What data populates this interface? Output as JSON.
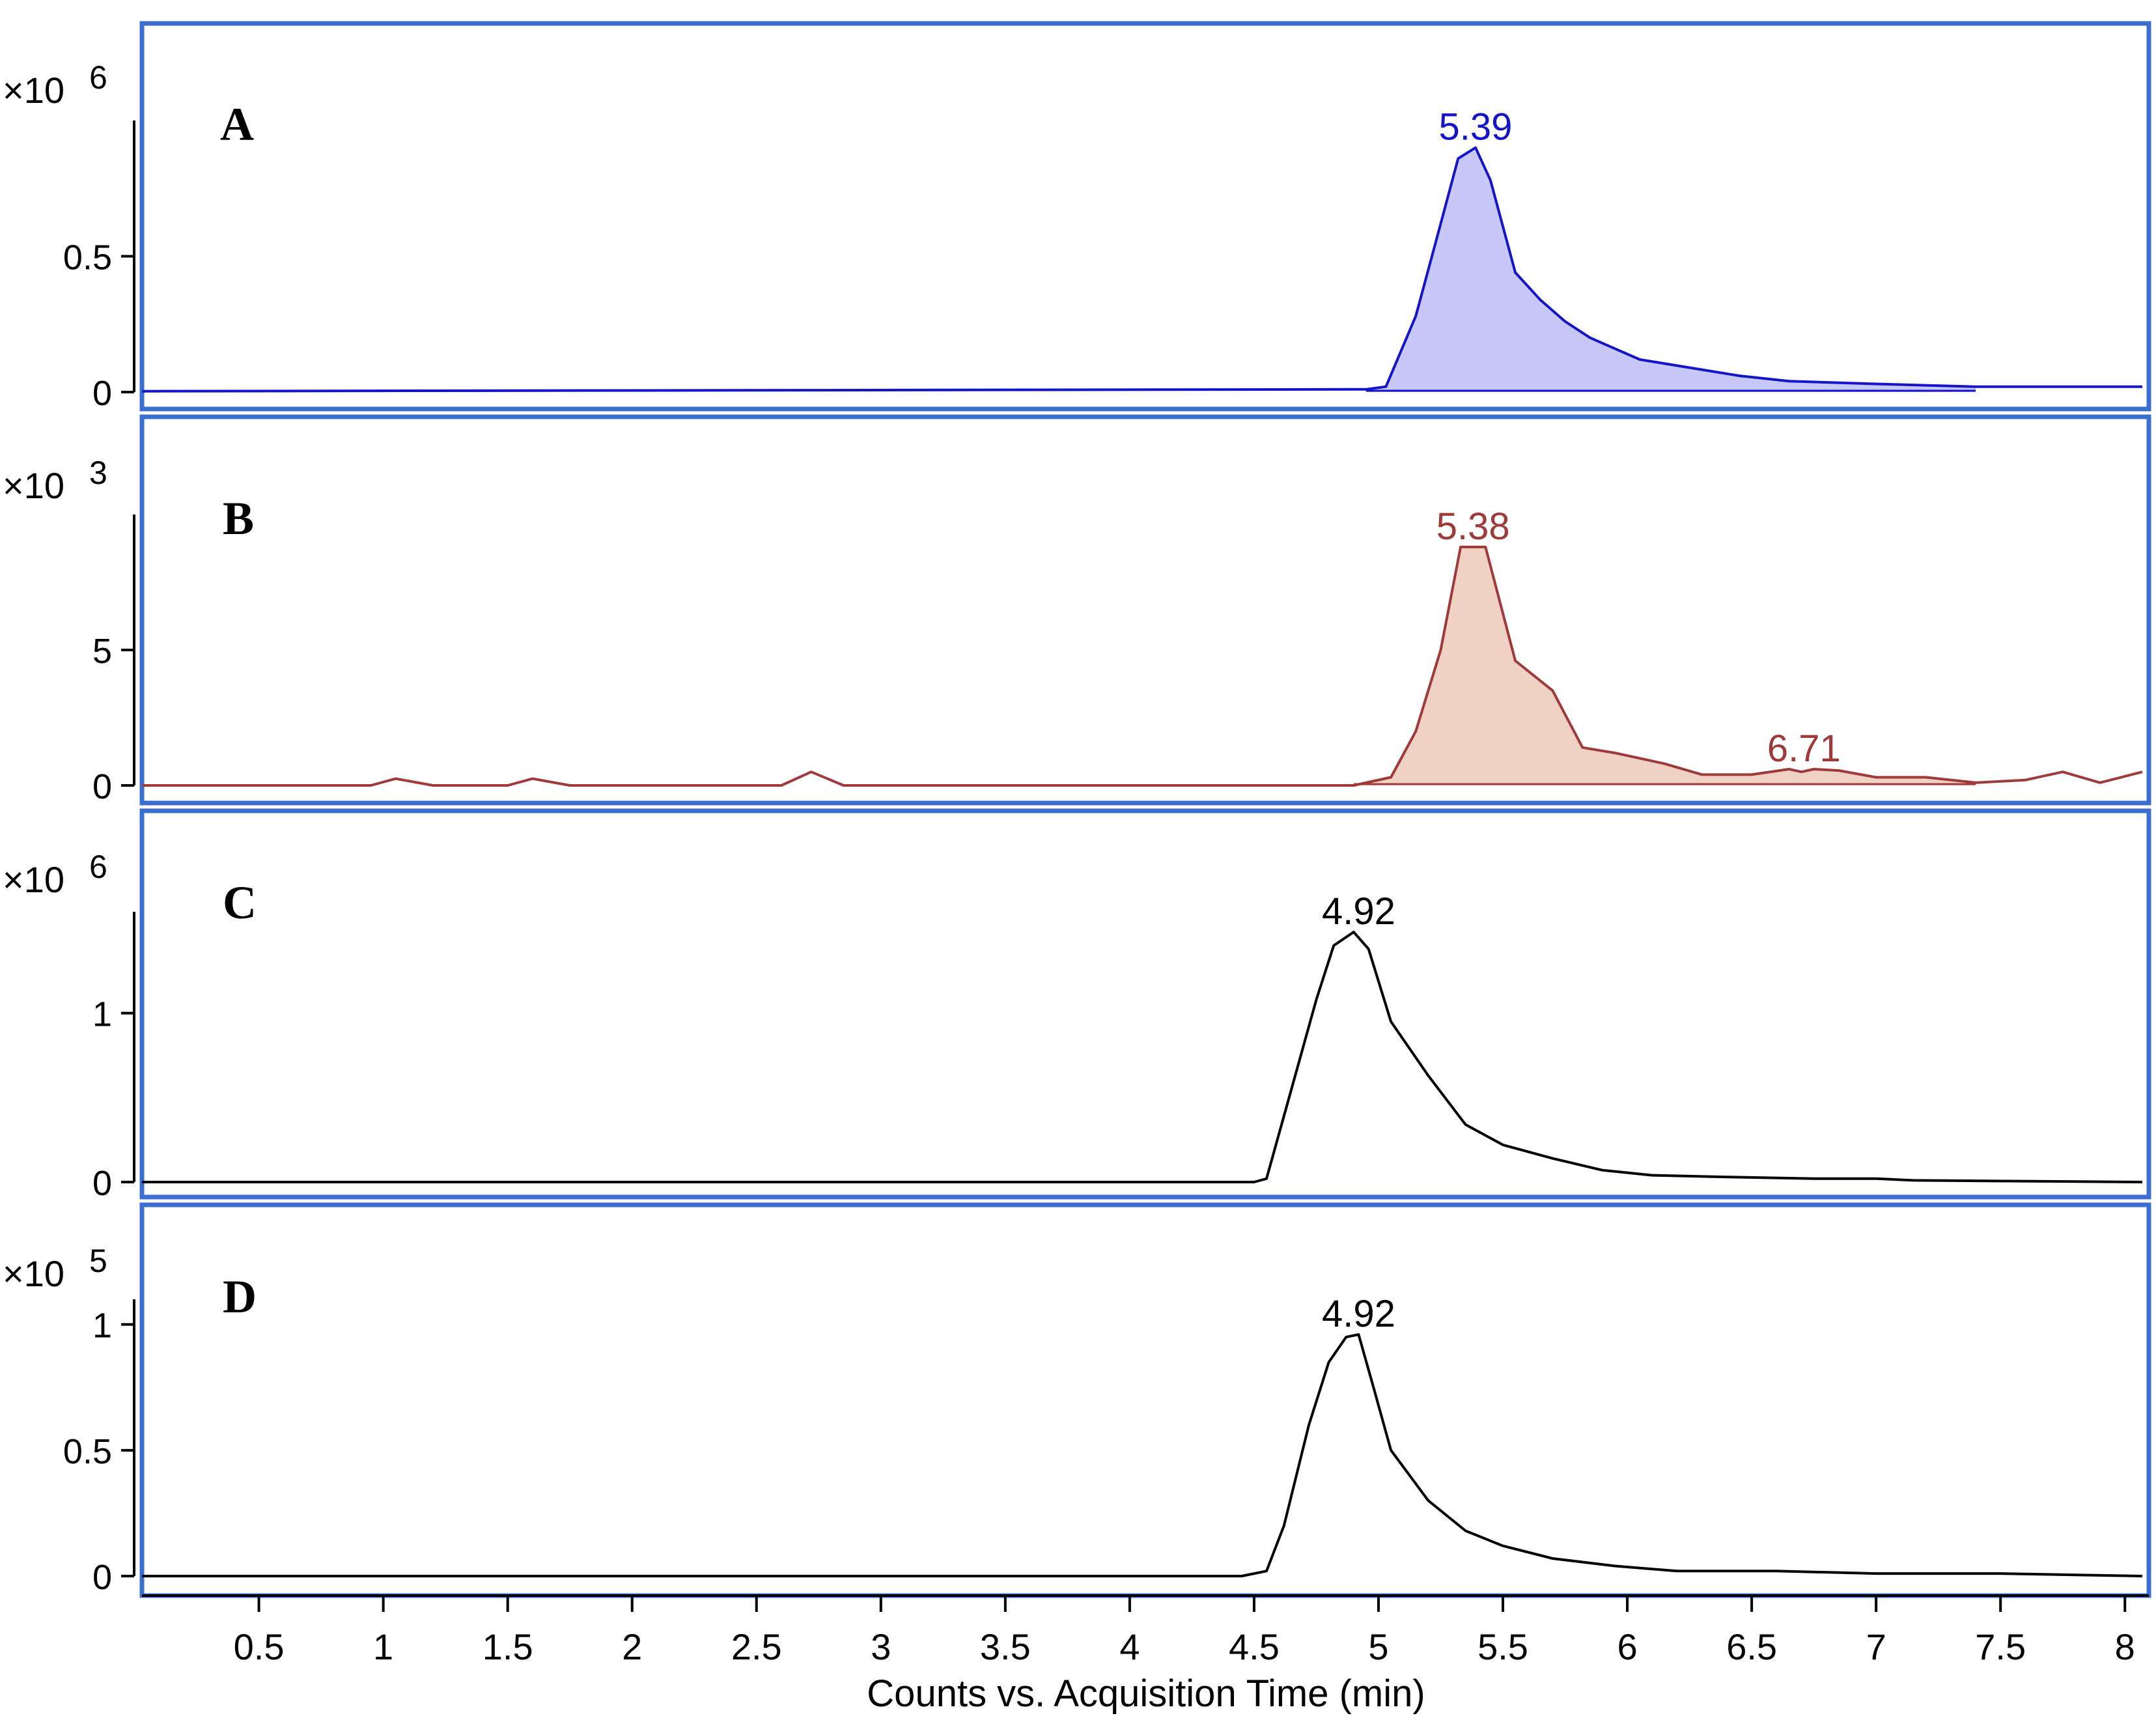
{
  "colors": {
    "frame": "#3a6fd0",
    "axis": "#000000",
    "blue": "#1515c8",
    "blue_fill": "#c8c8f8",
    "red": "#a03a3a",
    "red_fill": "#f0d2c4",
    "black": "#000000"
  },
  "chart_data": {
    "type": "line",
    "title": "",
    "xlabel": "Counts vs. Acquisition Time (min)",
    "xlim": [
      0.03,
      8.07
    ],
    "xticks": [
      "0.5",
      "1",
      "1.5",
      "2",
      "2.5",
      "3",
      "3.5",
      "4",
      "4.5",
      "5",
      "5.5",
      "6",
      "6.5",
      "7",
      "7.5",
      "8"
    ],
    "panels": [
      {
        "letter": "A",
        "exponent_base": "×10",
        "exponent_power": "6",
        "ylim": [
          0,
          1.0
        ],
        "yticks": [
          {
            "value": 0,
            "label": "0"
          },
          {
            "value": 0.5,
            "label": "0.5"
          }
        ],
        "color_key": "blue",
        "fill_key": "blue_fill",
        "series": {
          "x": [
            0.03,
            4.95,
            5.03,
            5.15,
            5.25,
            5.32,
            5.39,
            5.45,
            5.55,
            5.65,
            5.75,
            5.85,
            5.95,
            6.05,
            6.25,
            6.45,
            6.65,
            7.0,
            7.4,
            8.07
          ],
          "y": [
            0.003,
            0.01,
            0.02,
            0.28,
            0.62,
            0.86,
            0.9,
            0.78,
            0.44,
            0.34,
            0.26,
            0.2,
            0.16,
            0.12,
            0.09,
            0.06,
            0.04,
            0.03,
            0.02,
            0.02
          ]
        },
        "fill_range": [
          4.95,
          7.4
        ],
        "peaks": [
          {
            "label": "5.39",
            "x": 5.39,
            "y": 0.9
          }
        ]
      },
      {
        "letter": "B",
        "exponent_base": "×10",
        "exponent_power": "3",
        "ylim": [
          0,
          10.0
        ],
        "yticks": [
          {
            "value": 0,
            "label": "0"
          },
          {
            "value": 5,
            "label": "5"
          }
        ],
        "color_key": "red",
        "fill_key": "red_fill",
        "series": {
          "x": [
            0.03,
            0.95,
            1.05,
            1.2,
            1.5,
            1.6,
            1.75,
            2.6,
            2.72,
            2.85,
            4.9,
            5.05,
            5.15,
            5.25,
            5.33,
            5.43,
            5.55,
            5.7,
            5.82,
            5.95,
            6.15,
            6.3,
            6.5,
            6.65,
            6.7,
            6.75,
            6.85,
            7.0,
            7.2,
            7.4,
            7.6,
            7.75,
            7.9,
            8.07
          ],
          "y": [
            0,
            0,
            0.25,
            0,
            0,
            0.25,
            0,
            0,
            0.5,
            0,
            0,
            0.3,
            2.0,
            5.0,
            8.8,
            8.8,
            4.6,
            3.5,
            1.4,
            1.2,
            0.8,
            0.4,
            0.4,
            0.6,
            0.5,
            0.6,
            0.55,
            0.3,
            0.3,
            0.1,
            0.2,
            0.5,
            0.1,
            0.5
          ]
        },
        "fill_range": [
          4.9,
          7.4
        ],
        "peaks": [
          {
            "label": "5.38",
            "x": 5.38,
            "y": 8.8
          },
          {
            "label": "6.71",
            "x": 6.71,
            "y": 0.6
          }
        ]
      },
      {
        "letter": "C",
        "exponent_base": "×10",
        "exponent_power": "6",
        "ylim": [
          0,
          1.6
        ],
        "yticks": [
          {
            "value": 0,
            "label": "0"
          },
          {
            "value": 1,
            "label": "1"
          }
        ],
        "color_key": "black",
        "fill_key": "",
        "series": {
          "x": [
            0.03,
            4.5,
            4.55,
            4.65,
            4.75,
            4.82,
            4.9,
            4.96,
            5.05,
            5.2,
            5.35,
            5.5,
            5.7,
            5.9,
            6.1,
            6.4,
            6.75,
            7.0,
            7.15,
            8.07
          ],
          "y": [
            0,
            0,
            0.02,
            0.55,
            1.08,
            1.4,
            1.48,
            1.38,
            0.95,
            0.63,
            0.34,
            0.22,
            0.14,
            0.07,
            0.04,
            0.03,
            0.02,
            0.02,
            0.01,
            0
          ]
        },
        "fill_range": [],
        "peaks": [
          {
            "label": "4.92",
            "x": 4.92,
            "y": 1.48
          }
        ]
      },
      {
        "letter": "D",
        "exponent_base": "×10",
        "exponent_power": "5",
        "ylim": [
          0,
          1.1
        ],
        "yticks": [
          {
            "value": 0,
            "label": "0"
          },
          {
            "value": 0.5,
            "label": "0.5"
          },
          {
            "value": 1,
            "label": "1"
          }
        ],
        "color_key": "black",
        "fill_key": "",
        "series": {
          "x": [
            0.03,
            4.45,
            4.55,
            4.62,
            4.72,
            4.8,
            4.87,
            4.92,
            4.98,
            5.05,
            5.2,
            5.35,
            5.5,
            5.7,
            5.95,
            6.2,
            6.6,
            7.0,
            7.5,
            8.07
          ],
          "y": [
            0,
            0,
            0.02,
            0.2,
            0.6,
            0.85,
            0.95,
            0.96,
            0.75,
            0.5,
            0.3,
            0.18,
            0.12,
            0.07,
            0.04,
            0.02,
            0.02,
            0.01,
            0.01,
            0
          ]
        },
        "fill_range": [],
        "peaks": [
          {
            "label": "4.92",
            "x": 4.92,
            "y": 0.96
          }
        ]
      }
    ]
  }
}
